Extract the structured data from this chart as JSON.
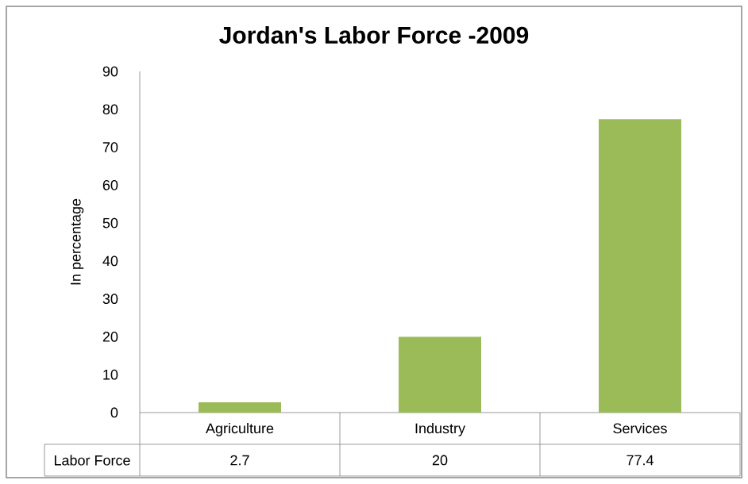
{
  "chart_data": {
    "type": "bar",
    "title": "Jordan's Labor Force -2009",
    "ylabel": "In percentage",
    "categories": [
      "Agriculture",
      "Industry",
      "Services"
    ],
    "series": [
      {
        "name": "Labor Force",
        "color": "#9bbb59",
        "values": [
          2.7,
          20,
          77.4
        ]
      }
    ],
    "ylim": [
      0,
      90
    ],
    "yticks": [
      0,
      10,
      20,
      30,
      40,
      50,
      60,
      70,
      80,
      90
    ],
    "data_labels": true
  }
}
